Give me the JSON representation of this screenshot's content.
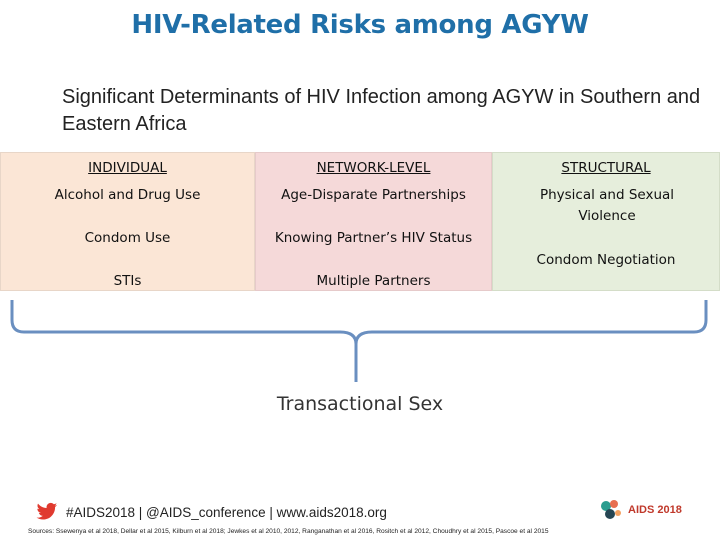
{
  "title": "HIV-Related Risks among AGYW",
  "subtitle": "Significant Determinants of HIV Infection among AGYW in Southern and Eastern Africa",
  "columns": {
    "individual": {
      "header": "INDIVIDUAL",
      "items": [
        "Alcohol and Drug Use",
        "Condom Use",
        "STIs"
      ]
    },
    "network": {
      "header": "NETWORK-LEVEL",
      "items": [
        "Age-Disparate Partnerships",
        "Knowing Partner’s HIV Status",
        "Multiple Partners"
      ]
    },
    "structural": {
      "header": "STRUCTURAL",
      "items": [
        "Physical and Sexual Violence",
        "Condom Negotiation"
      ]
    }
  },
  "outcome": "Transactional Sex",
  "footer": {
    "hashtag_line": "#AIDS2018 | @AIDS_conference | www.aids2018.org",
    "logo_text": "AIDS 2018",
    "sources": "Sources: Ssewenya et al 2018, Dellar et al 2015, Kilburn et al 2018; Jewkes et al 2010, 2012, Ranganathan et al 2016, Rositch et al 2012, Choudhry et al 2015, Pascoe et al 2015"
  },
  "colors": {
    "title": "#1f6fa8",
    "individual_bg": "#fbe6d6",
    "network_bg": "#f5d9d9",
    "structural_bg": "#e6eedc",
    "bracket": "#6a8fc0",
    "twitter": "#e03a2f"
  },
  "icons": {
    "twitter": "twitter-bird-icon",
    "logo": "aids2018-logo-icon"
  }
}
